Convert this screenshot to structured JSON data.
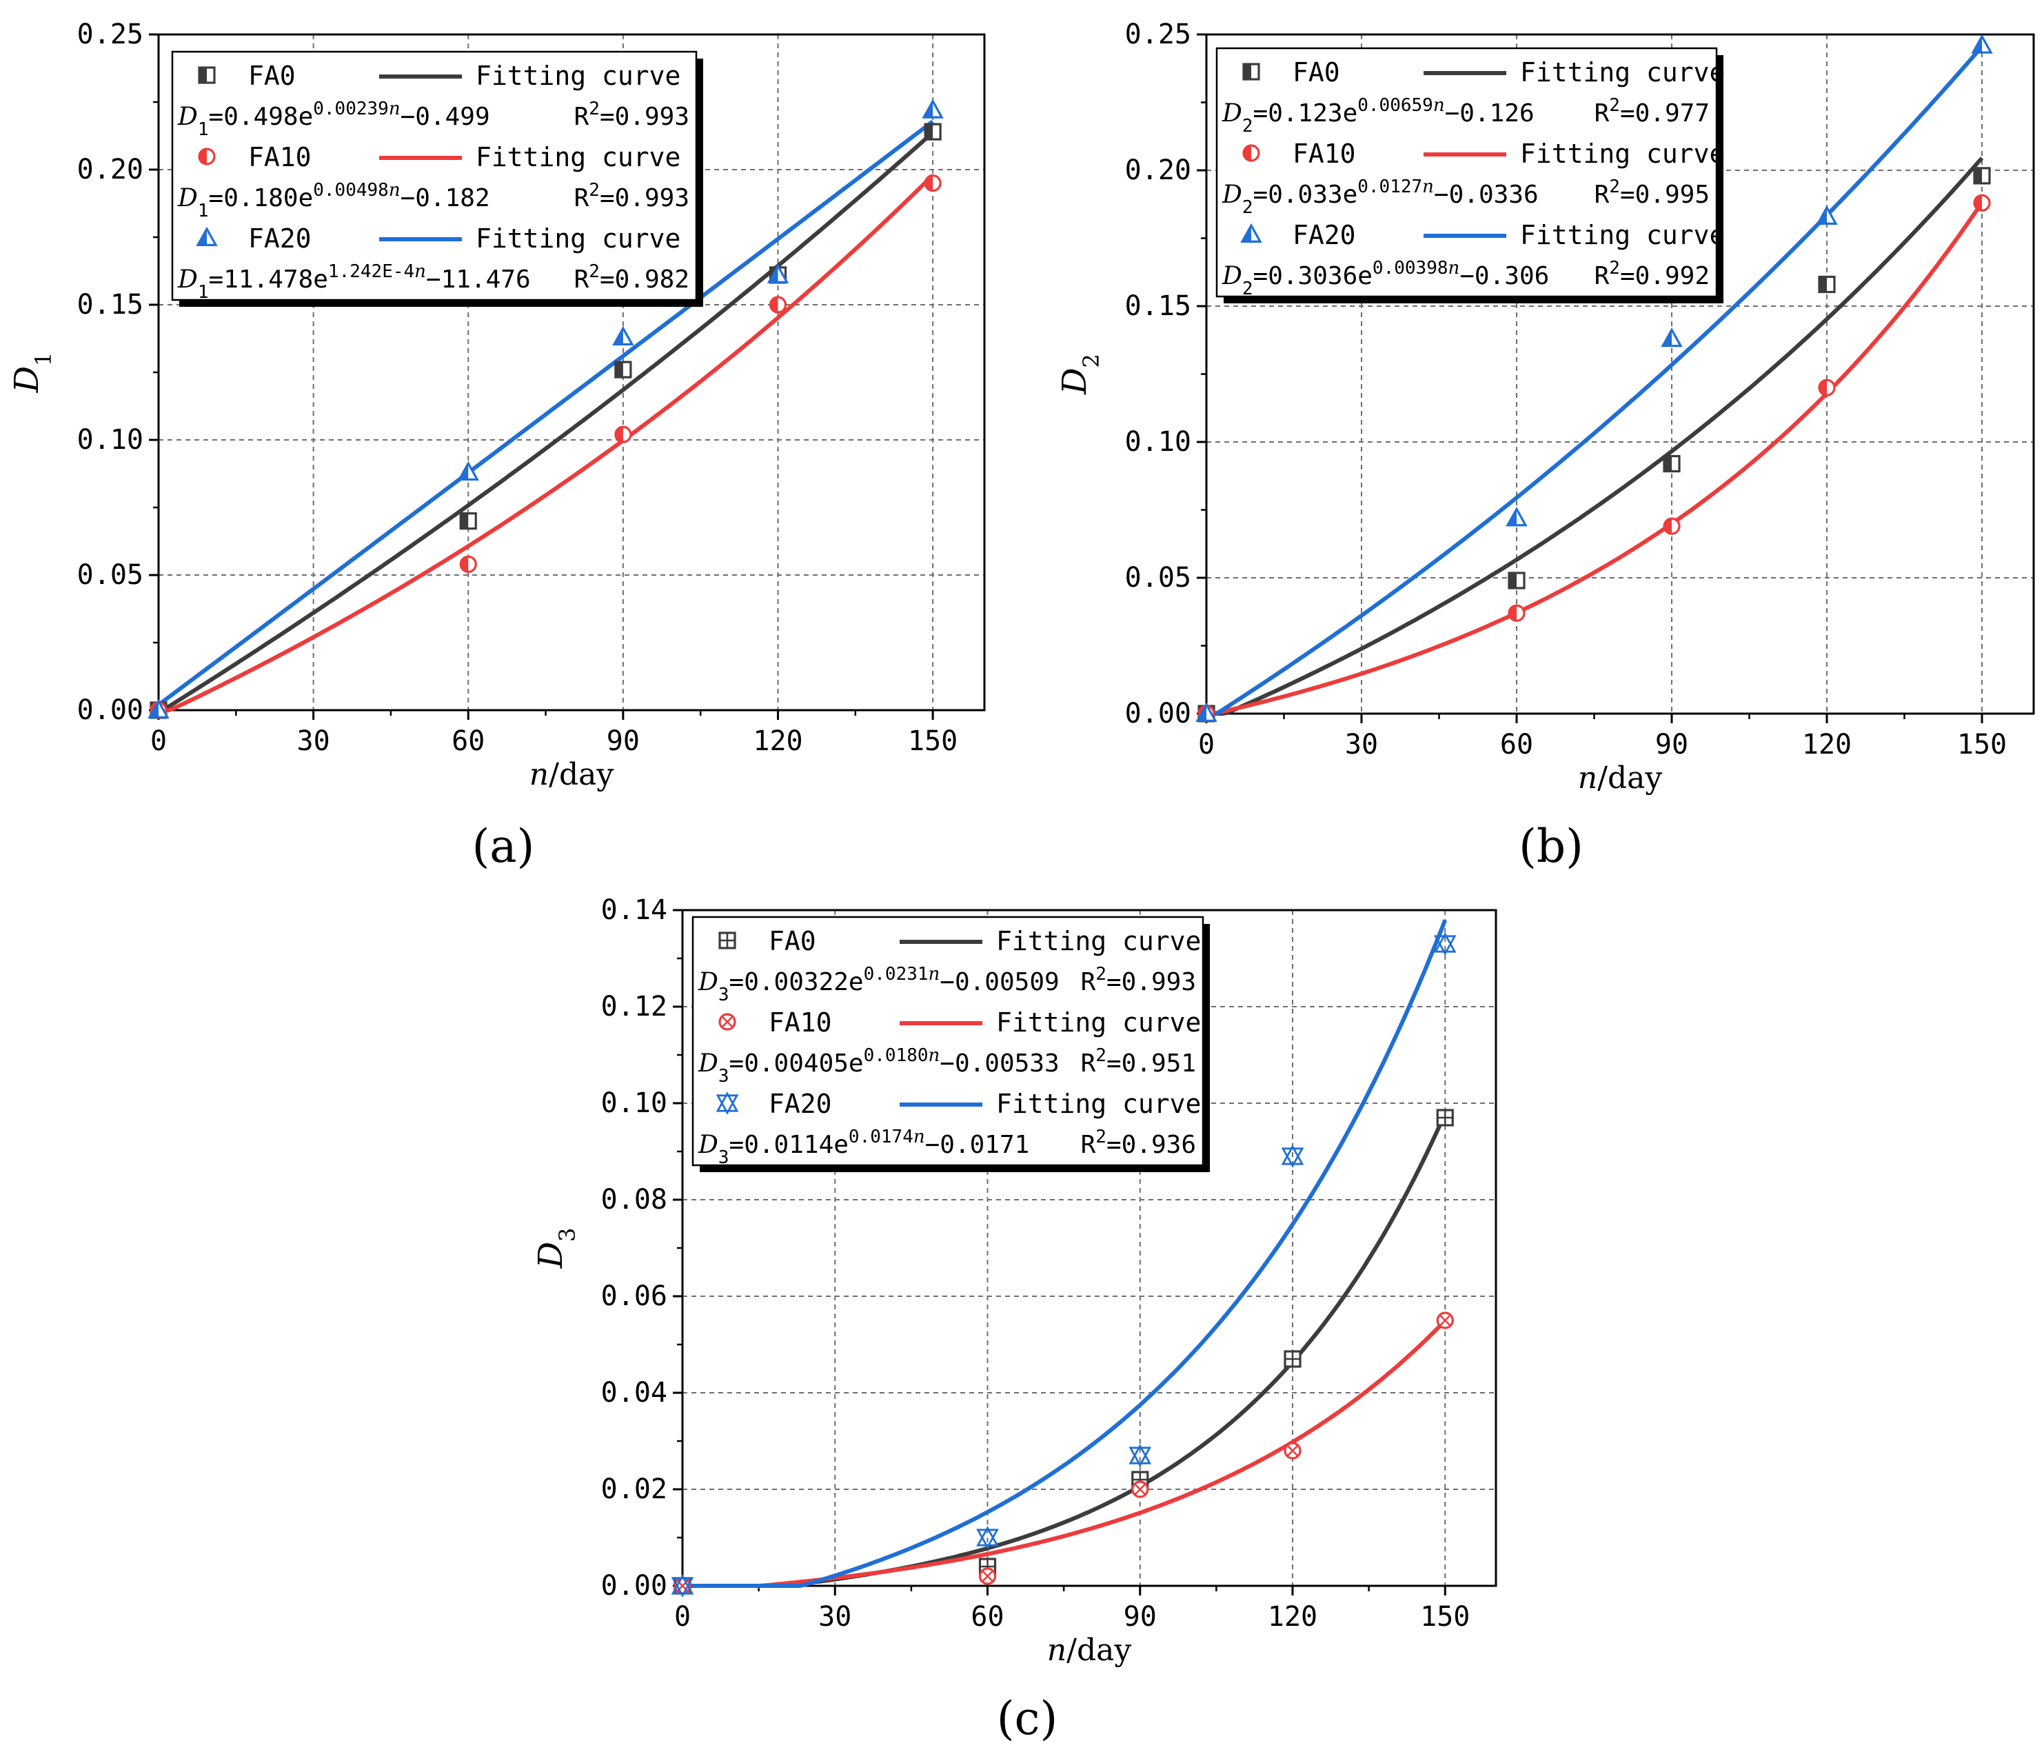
{
  "figure": {
    "labels": [
      "(a)",
      "(b)",
      "(c)"
    ]
  },
  "colors": {
    "FA0": "#3c3c3c",
    "FA10": "#ee3b3b",
    "FA20": "#1f6fd6",
    "grid": "#6e6e6e"
  },
  "chart_data": [
    {
      "type": "scatter",
      "panel": "(a)",
      "xlabel": "n/day",
      "ylabel": "D1",
      "xlim": [
        0,
        160
      ],
      "ylim": [
        0,
        0.25
      ],
      "xticks": [
        "0",
        "30",
        "60",
        "90",
        "120",
        "150"
      ],
      "yticks": [
        "0.00",
        "0.05",
        "0.10",
        "0.15",
        "0.20",
        "0.25"
      ],
      "grid": true,
      "legend_position": "top-left",
      "series": [
        {
          "name": "FA0",
          "marker": "square",
          "color": "#3c3c3c",
          "legend_label": "FA0",
          "fit_label": "Fitting curve",
          "equation": "D1=0.498e^(0.00239n)−0.499",
          "r2": "R2=0.993",
          "fit": {
            "a": 0.498,
            "b": 0.00239,
            "c": -0.499
          },
          "x": [
            0,
            60,
            90,
            120,
            150
          ],
          "y": [
            0,
            0.07,
            0.126,
            0.161,
            0.214
          ]
        },
        {
          "name": "FA10",
          "marker": "circle",
          "color": "#ee3b3b",
          "legend_label": "FA10",
          "fit_label": "Fitting curve",
          "equation": "D1=0.180e^(0.00498n)−0.182",
          "r2": "R2=0.993",
          "fit": {
            "a": 0.18,
            "b": 0.00498,
            "c": -0.182
          },
          "x": [
            0,
            60,
            90,
            120,
            150
          ],
          "y": [
            0,
            0.054,
            0.102,
            0.15,
            0.195
          ]
        },
        {
          "name": "FA20",
          "marker": "triangle",
          "color": "#1f6fd6",
          "legend_label": "FA20",
          "fit_label": "Fitting curve",
          "equation": "D1=11.478e^(1.242E-4n)−11.476",
          "r2": "R2=0.982",
          "fit": {
            "a": 11.478,
            "b": 0.0001242,
            "c": -11.476
          },
          "x": [
            0,
            60,
            90,
            120,
            150
          ],
          "y": [
            0,
            0.088,
            0.138,
            0.161,
            0.222
          ]
        }
      ]
    },
    {
      "type": "scatter",
      "panel": "(b)",
      "xlabel": "n/day",
      "ylabel": "D2",
      "xlim": [
        0,
        160
      ],
      "ylim": [
        0,
        0.25
      ],
      "xticks": [
        "0",
        "30",
        "60",
        "90",
        "120",
        "150"
      ],
      "yticks": [
        "0.00",
        "0.05",
        "0.10",
        "0.15",
        "0.20",
        "0.25"
      ],
      "grid": true,
      "legend_position": "top-left",
      "series": [
        {
          "name": "FA0",
          "marker": "square",
          "color": "#3c3c3c",
          "legend_label": "FA0",
          "fit_label": "Fitting curve",
          "equation": "D2=0.123e^(0.00659n)−0.126",
          "r2": "R2=0.977",
          "fit": {
            "a": 0.123,
            "b": 0.00659,
            "c": -0.126
          },
          "x": [
            0,
            60,
            90,
            120,
            150
          ],
          "y": [
            0,
            0.049,
            0.092,
            0.158,
            0.198
          ]
        },
        {
          "name": "FA10",
          "marker": "circle",
          "color": "#ee3b3b",
          "legend_label": "FA10",
          "fit_label": "Fitting curve",
          "equation": "D2=0.033e^(0.0127n)−0.0336",
          "r2": "R2=0.995",
          "fit": {
            "a": 0.033,
            "b": 0.0127,
            "c": -0.0336
          },
          "x": [
            0,
            60,
            90,
            120,
            150
          ],
          "y": [
            0,
            0.037,
            0.069,
            0.12,
            0.188
          ]
        },
        {
          "name": "FA20",
          "marker": "triangle",
          "color": "#1f6fd6",
          "legend_label": "FA20",
          "fit_label": "Fitting curve",
          "equation": "D2=0.3036e^(0.00398n)−0.306",
          "r2": "R2=0.992",
          "fit": {
            "a": 0.3036,
            "b": 0.00398,
            "c": -0.306
          },
          "x": [
            0,
            60,
            90,
            120,
            150
          ],
          "y": [
            0,
            0.072,
            0.138,
            0.183,
            0.246
          ]
        }
      ]
    },
    {
      "type": "scatter",
      "panel": "(c)",
      "xlabel": "n/day",
      "ylabel": "D3",
      "xlim": [
        0,
        160
      ],
      "ylim": [
        0,
        0.14
      ],
      "xticks": [
        "0",
        "30",
        "60",
        "90",
        "120",
        "150"
      ],
      "yticks": [
        "0.00",
        "0.02",
        "0.04",
        "0.06",
        "0.08",
        "0.10",
        "0.12",
        "0.14"
      ],
      "grid": true,
      "legend_position": "top-left",
      "series": [
        {
          "name": "FA0",
          "marker": "squareplus",
          "color": "#3c3c3c",
          "legend_label": "FA0",
          "fit_label": "Fitting curve",
          "equation": "D3=0.00322e^(0.0231n)−0.00509",
          "r2": "R2=0.993",
          "fit": {
            "a": 0.00322,
            "b": 0.0231,
            "c": -0.00509
          },
          "x": [
            0,
            60,
            90,
            120,
            150
          ],
          "y": [
            0,
            0.004,
            0.022,
            0.047,
            0.097
          ]
        },
        {
          "name": "FA10",
          "marker": "circlex",
          "color": "#ee3b3b",
          "legend_label": "FA10",
          "fit_label": "Fitting curve",
          "equation": "D3=0.00405e^(0.0180n)−0.00533",
          "r2": "R2=0.951",
          "fit": {
            "a": 0.00405,
            "b": 0.018,
            "c": -0.00533
          },
          "x": [
            0,
            60,
            90,
            120,
            150
          ],
          "y": [
            0,
            0.002,
            0.02,
            0.028,
            0.055
          ]
        },
        {
          "name": "FA20",
          "marker": "trianglex",
          "color": "#1f6fd6",
          "legend_label": "FA20",
          "fit_label": "Fitting curve",
          "equation": "D3=0.0114e^(0.0174n)−0.0171",
          "r2": "R2=0.936",
          "fit": {
            "a": 0.0114,
            "b": 0.0174,
            "c": -0.0171
          },
          "x": [
            0,
            60,
            90,
            120,
            150
          ],
          "y": [
            0,
            0.01,
            0.027,
            0.089,
            0.133
          ]
        }
      ]
    }
  ]
}
